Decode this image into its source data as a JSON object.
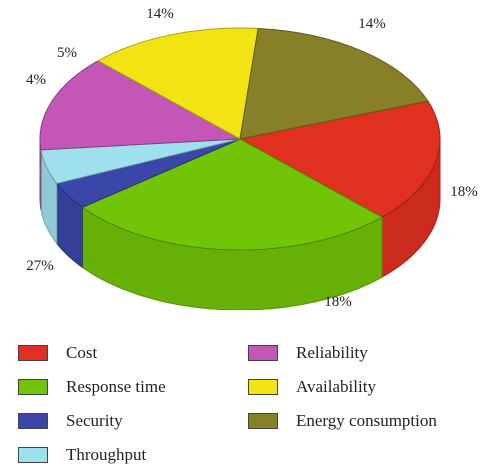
{
  "chart_data": {
    "type": "pie",
    "variant": "3d",
    "title": "",
    "slices": [
      {
        "label": "Cost",
        "value": 18,
        "text": "18%",
        "color": "#e03020"
      },
      {
        "label": "Response time",
        "value": 27,
        "text": "27%",
        "color": "#72c406"
      },
      {
        "label": "Security",
        "value": 4,
        "text": "4%",
        "color": "#3a46a8"
      },
      {
        "label": "Throughput",
        "value": 5,
        "text": "5%",
        "color": "#9ee0ee"
      },
      {
        "label": "Reliability",
        "value": 14,
        "text": "14%",
        "color": "#c456b8"
      },
      {
        "label": "Availability",
        "value": 14,
        "text": "14%",
        "color": "#f2e412"
      },
      {
        "label": "Energy consumption",
        "value": 18,
        "text": "18%",
        "color": "#878028"
      }
    ],
    "legend_position": "bottom"
  }
}
